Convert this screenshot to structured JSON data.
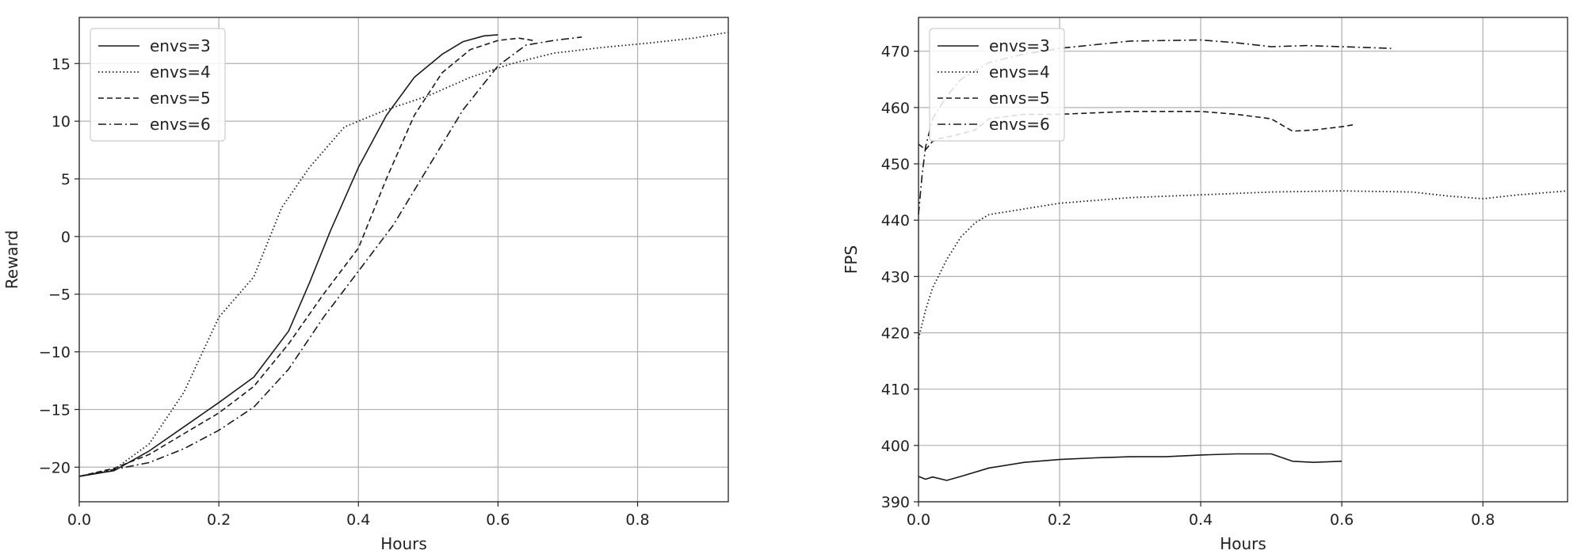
{
  "chart_data": [
    {
      "type": "line",
      "xlabel": "Hours",
      "ylabel": "Reward",
      "xlim": [
        0.0,
        0.93
      ],
      "ylim": [
        -23,
        19
      ],
      "xticks": [
        0.0,
        0.2,
        0.4,
        0.6,
        0.8
      ],
      "xtick_labels": [
        "0.0",
        "0.2",
        "0.4",
        "0.6",
        "0.8"
      ],
      "yticks": [
        -20,
        -15,
        -10,
        -5,
        0,
        5,
        10,
        15
      ],
      "ytick_labels": [
        "−20",
        "−15",
        "−10",
        "−5",
        "0",
        "5",
        "10",
        "15"
      ],
      "grid": true,
      "legend_position": "upper-left",
      "series": [
        {
          "name": "envs=3",
          "style": "solid",
          "x": [
            0.0,
            0.05,
            0.1,
            0.15,
            0.2,
            0.25,
            0.3,
            0.33,
            0.36,
            0.4,
            0.44,
            0.48,
            0.52,
            0.55,
            0.58,
            0.6
          ],
          "y": [
            -20.8,
            -20.3,
            -18.6,
            -16.5,
            -14.4,
            -12.2,
            -8.2,
            -4.0,
            0.5,
            6.0,
            10.5,
            13.8,
            15.8,
            16.9,
            17.4,
            17.5
          ]
        },
        {
          "name": "envs=4",
          "style": "dotted",
          "x": [
            0.0,
            0.05,
            0.1,
            0.15,
            0.2,
            0.25,
            0.29,
            0.33,
            0.38,
            0.44,
            0.5,
            0.56,
            0.62,
            0.68,
            0.75,
            0.82,
            0.88,
            0.93
          ],
          "y": [
            -20.8,
            -20.2,
            -18.0,
            -13.5,
            -7.0,
            -3.5,
            2.5,
            6.0,
            9.5,
            11.0,
            12.2,
            13.8,
            15.0,
            15.9,
            16.4,
            16.8,
            17.2,
            17.7
          ]
        },
        {
          "name": "envs=5",
          "style": "dashed",
          "x": [
            0.0,
            0.05,
            0.1,
            0.15,
            0.2,
            0.25,
            0.3,
            0.35,
            0.4,
            0.44,
            0.48,
            0.52,
            0.56,
            0.6,
            0.63,
            0.65
          ],
          "y": [
            -20.8,
            -20.1,
            -18.9,
            -17.1,
            -15.3,
            -13.0,
            -9.3,
            -5.0,
            -1.0,
            5.0,
            10.5,
            14.2,
            16.2,
            17.0,
            17.2,
            17.0
          ]
        },
        {
          "name": "envs=6",
          "style": "dashdot",
          "x": [
            0.0,
            0.05,
            0.1,
            0.15,
            0.2,
            0.25,
            0.3,
            0.35,
            0.4,
            0.45,
            0.5,
            0.55,
            0.6,
            0.64,
            0.68,
            0.72
          ],
          "y": [
            -20.8,
            -20.2,
            -19.6,
            -18.4,
            -16.8,
            -14.8,
            -11.5,
            -7.0,
            -3.0,
            1.0,
            6.0,
            11.0,
            14.8,
            16.6,
            17.0,
            17.3
          ]
        }
      ]
    },
    {
      "type": "line",
      "xlabel": "Hours",
      "ylabel": "FPS",
      "xlim": [
        0.0,
        0.92
      ],
      "ylim": [
        390,
        476
      ],
      "xticks": [
        0.0,
        0.2,
        0.4,
        0.6,
        0.8
      ],
      "xtick_labels": [
        "0.0",
        "0.2",
        "0.4",
        "0.6",
        "0.8"
      ],
      "yticks": [
        390,
        400,
        410,
        420,
        430,
        440,
        450,
        460,
        470
      ],
      "ytick_labels": [
        "390",
        "400",
        "410",
        "420",
        "430",
        "440",
        "450",
        "460",
        "470"
      ],
      "grid": true,
      "legend_position": "upper-left",
      "series": [
        {
          "name": "envs=3",
          "style": "solid",
          "x": [
            0.0,
            0.01,
            0.02,
            0.04,
            0.06,
            0.1,
            0.15,
            0.2,
            0.25,
            0.3,
            0.35,
            0.4,
            0.45,
            0.5,
            0.53,
            0.56,
            0.6
          ],
          "y": [
            394.5,
            394.0,
            394.4,
            393.8,
            394.5,
            396.0,
            397.0,
            397.5,
            397.8,
            398.0,
            398.0,
            398.3,
            398.5,
            398.5,
            397.2,
            397.0,
            397.2
          ]
        },
        {
          "name": "envs=4",
          "style": "dotted",
          "x": [
            0.0,
            0.01,
            0.02,
            0.04,
            0.06,
            0.08,
            0.1,
            0.15,
            0.2,
            0.3,
            0.4,
            0.5,
            0.6,
            0.7,
            0.75,
            0.8,
            0.85,
            0.92
          ],
          "y": [
            419,
            424,
            428,
            433,
            437,
            439.5,
            441,
            442,
            443,
            444,
            444.5,
            445,
            445.2,
            445,
            444.3,
            443.8,
            444.5,
            445.2
          ]
        },
        {
          "name": "envs=5",
          "style": "dashed",
          "x": [
            0.0,
            0.01,
            0.02,
            0.03,
            0.05,
            0.08,
            0.1,
            0.15,
            0.2,
            0.3,
            0.4,
            0.45,
            0.5,
            0.53,
            0.56,
            0.6,
            0.62
          ],
          "y": [
            453.5,
            452.5,
            454.0,
            454.5,
            455.0,
            456.0,
            458.0,
            458.8,
            458.8,
            459.3,
            459.3,
            458.8,
            458.0,
            455.8,
            456.0,
            456.6,
            457.0
          ]
        },
        {
          "name": "envs=6",
          "style": "dashdot",
          "x": [
            0.0,
            0.005,
            0.01,
            0.02,
            0.04,
            0.06,
            0.1,
            0.15,
            0.2,
            0.3,
            0.4,
            0.45,
            0.5,
            0.55,
            0.6,
            0.67
          ],
          "y": [
            441,
            448,
            453,
            458,
            462,
            465,
            468,
            469.5,
            470.5,
            471.8,
            472.0,
            471.5,
            470.8,
            471.0,
            470.8,
            470.5
          ]
        }
      ]
    }
  ]
}
